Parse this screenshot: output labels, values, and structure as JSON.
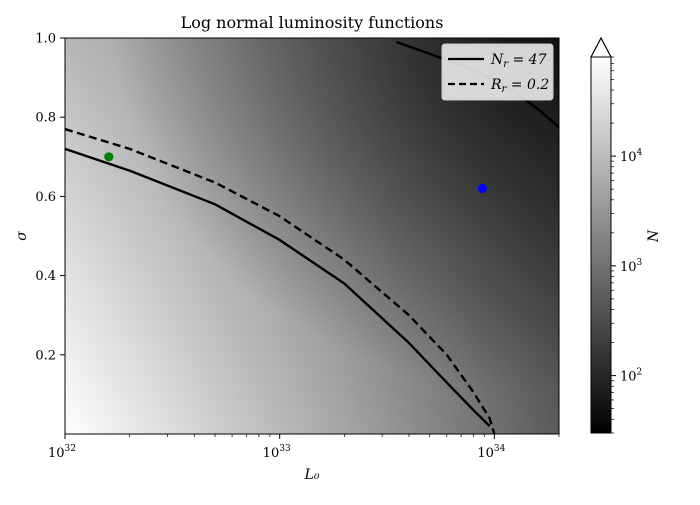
{
  "chart_data": {
    "type": "heatmap",
    "title": "Log normal luminosity functions",
    "xlabel": "L₀",
    "ylabel": "σ",
    "xscale": "log",
    "xlim": [
      1e+32,
      2e+34
    ],
    "ylim": [
      0.0,
      1.0
    ],
    "x_tick_labels": [
      {
        "value": 1e+32,
        "base": "10",
        "exp": "32"
      },
      {
        "value": 1e+33,
        "base": "10",
        "exp": "33"
      },
      {
        "value": 1e+34,
        "base": "10",
        "exp": "34"
      }
    ],
    "y_ticks": [
      0.2,
      0.4,
      0.6,
      0.8,
      1.0
    ],
    "y_tick_labels": [
      "0.2",
      "0.4",
      "0.6",
      "0.8",
      "1.0"
    ],
    "grid": false,
    "colorbar": {
      "label": "N",
      "scale": "log",
      "colormap": "gray",
      "range": [
        30,
        80000
      ],
      "extend": "max",
      "tick_labels": [
        {
          "value": 100,
          "base": "10",
          "exp": "2"
        },
        {
          "value": 1000,
          "base": "10",
          "exp": "3"
        },
        {
          "value": 10000,
          "base": "10",
          "exp": "4"
        }
      ]
    },
    "legend": {
      "placement": "top-right",
      "entries": [
        {
          "label": "N_r = 47",
          "style": "solid"
        },
        {
          "label": "R_r = 0.2",
          "style": "dashed"
        }
      ]
    },
    "series": [
      {
        "name": "N_r = 47",
        "style": "solid",
        "color": "#000000",
        "x": [
          1e+32,
          2e+32,
          5e+32,
          1e+33,
          2e+33,
          4e+33,
          6e+33,
          8e+33,
          9.5e+33
        ],
        "y": [
          0.72,
          0.665,
          0.58,
          0.49,
          0.38,
          0.23,
          0.13,
          0.06,
          0.02
        ]
      },
      {
        "name": "N_r = 47",
        "style": "solid",
        "color": "#000000",
        "x": [
          3.5e+33,
          5e+33,
          8e+33,
          1.2e+34,
          1.6e+34,
          2e+34
        ],
        "y": [
          0.99,
          0.96,
          0.92,
          0.87,
          0.82,
          0.775
        ]
      },
      {
        "name": "R_r = 0.2",
        "style": "dashed",
        "color": "#000000",
        "x": [
          1e+32,
          2e+32,
          5e+32,
          1e+33,
          2e+33,
          4e+33,
          6e+33,
          8e+33,
          9.5e+33,
          1e+34
        ],
        "y": [
          0.77,
          0.72,
          0.635,
          0.55,
          0.44,
          0.3,
          0.2,
          0.105,
          0.04,
          0.0
        ]
      }
    ],
    "points": [
      {
        "x": 1.6e+32,
        "y": 0.7,
        "color": "#008000"
      },
      {
        "x": 8.8e+33,
        "y": 0.62,
        "color": "#0000ff"
      }
    ]
  }
}
